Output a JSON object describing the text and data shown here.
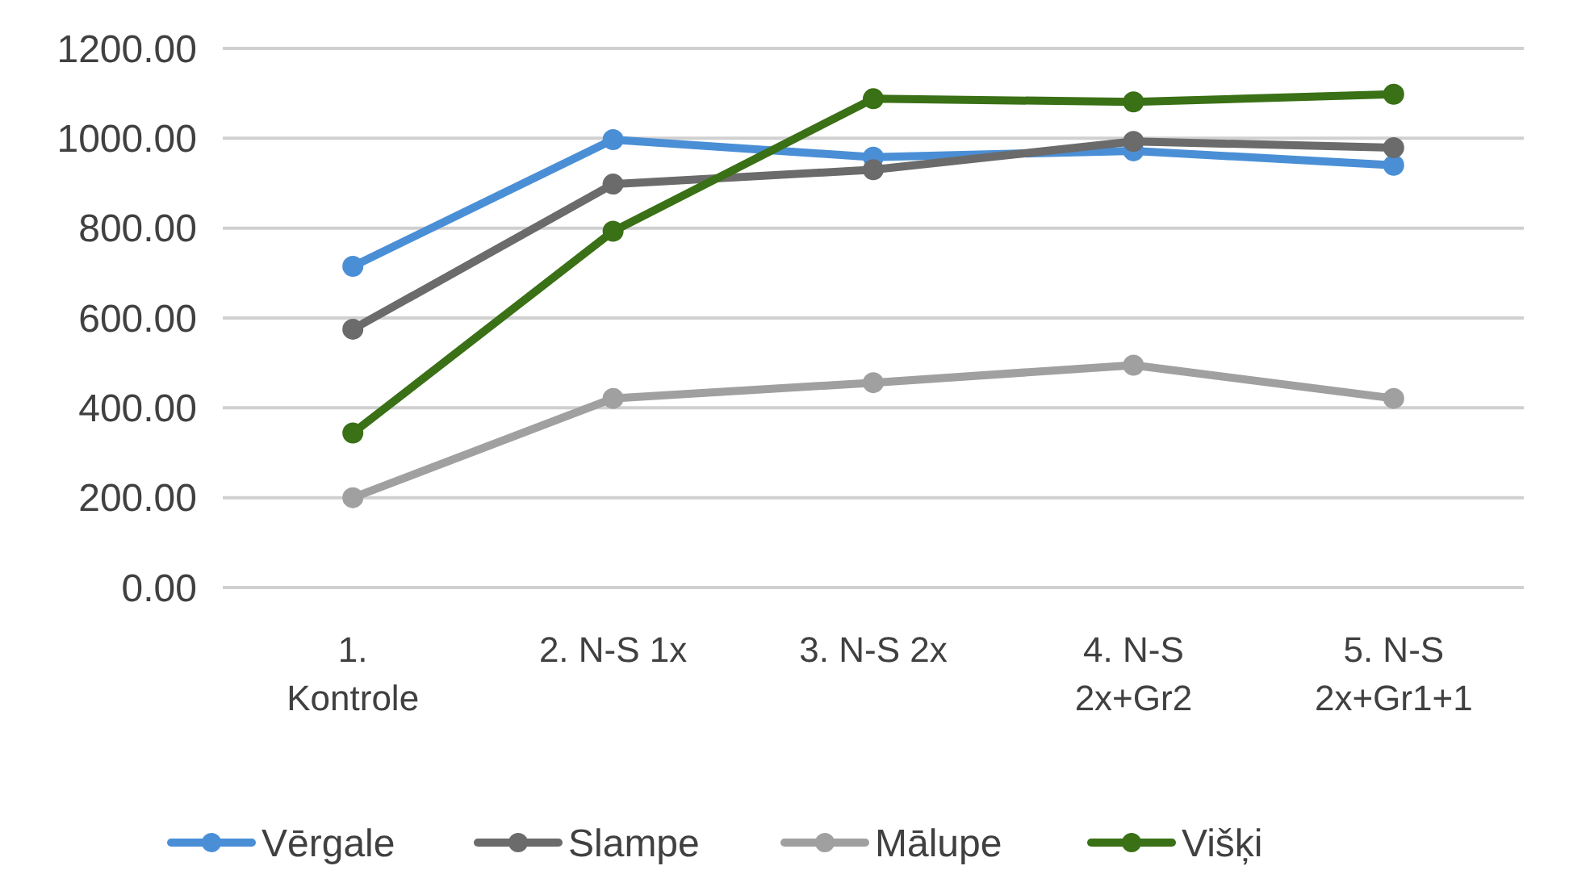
{
  "chart_data": {
    "type": "line",
    "categories": [
      "1. Kontrole",
      "2. N-S 1x",
      "3. N-S 2x",
      "4. N-S 2x+Gr2",
      "5. N-S 2x+Gr1+1"
    ],
    "series": [
      {
        "name": "Vērgale",
        "color": "#4a8fd6",
        "values": [
          715,
          997,
          958,
          972,
          940
        ]
      },
      {
        "name": "Slampe",
        "color": "#6b6b6b",
        "values": [
          575,
          898,
          930,
          993,
          979
        ]
      },
      {
        "name": "Mālupe",
        "color": "#a0a0a0",
        "values": [
          200,
          421,
          456,
          495,
          421
        ]
      },
      {
        "name": "Višķi",
        "color": "#3a7016",
        "values": [
          344,
          793,
          1088,
          1081,
          1098
        ]
      }
    ],
    "ylim": [
      0,
      1200
    ],
    "yticks": [
      {
        "value": 0,
        "label": "0.00"
      },
      {
        "value": 200,
        "label": "200.00"
      },
      {
        "value": 400,
        "label": "400.00"
      },
      {
        "value": 600,
        "label": "600.00"
      },
      {
        "value": 800,
        "label": "800.00"
      },
      {
        "value": 1000,
        "label": "1000.00"
      },
      {
        "value": 1200,
        "label": "1200.00"
      }
    ],
    "grid": "y",
    "legend": "bottom",
    "marker": "circle",
    "line_style": "solid"
  }
}
